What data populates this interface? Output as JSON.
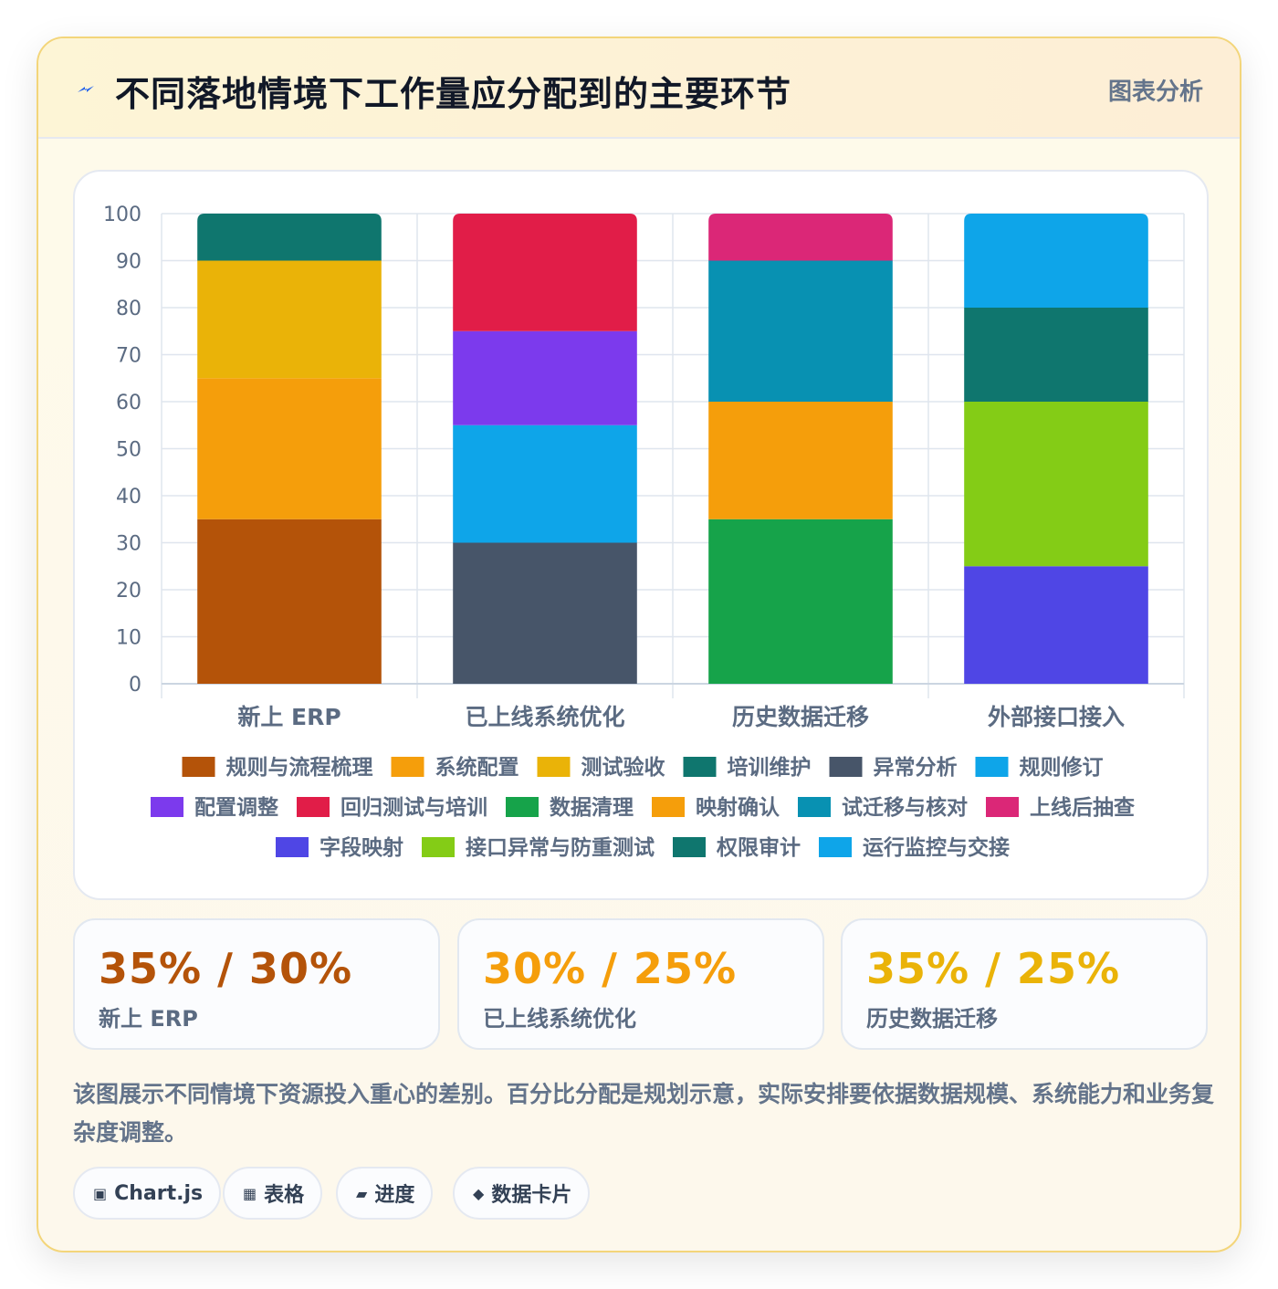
{
  "header": {
    "icon": "lightning-icon",
    "title": "不同落地情境下工作量应分配到的主要环节",
    "tag": "图表分析"
  },
  "chart_data": {
    "type": "bar",
    "stacked": true,
    "categories": [
      "新上 ERP",
      "已上线系统优化",
      "历史数据迁移",
      "外部接口接入"
    ],
    "ylim": [
      0,
      100
    ],
    "yticks": [
      0,
      10,
      20,
      30,
      40,
      50,
      60,
      70,
      80,
      90,
      100
    ],
    "grid": true,
    "legend_position": "bottom",
    "series": [
      {
        "name": "规则与流程梳理",
        "color": "#b45309",
        "values": [
          35,
          0,
          0,
          0
        ]
      },
      {
        "name": "系统配置",
        "color": "#f59e0b",
        "values": [
          30,
          0,
          0,
          0
        ]
      },
      {
        "name": "测试验收",
        "color": "#eab308",
        "values": [
          25,
          0,
          0,
          0
        ]
      },
      {
        "name": "培训维护",
        "color": "#0f766e",
        "values": [
          10,
          0,
          0,
          0
        ]
      },
      {
        "name": "异常分析",
        "color": "#475569",
        "values": [
          0,
          30,
          0,
          0
        ]
      },
      {
        "name": "规则修订",
        "color": "#0ea5e9",
        "values": [
          0,
          25,
          0,
          0
        ]
      },
      {
        "name": "配置调整",
        "color": "#7c3aed",
        "values": [
          0,
          20,
          0,
          0
        ]
      },
      {
        "name": "回归测试与培训",
        "color": "#e11d48",
        "values": [
          0,
          25,
          0,
          0
        ]
      },
      {
        "name": "数据清理",
        "color": "#16a34a",
        "values": [
          0,
          0,
          35,
          0
        ]
      },
      {
        "name": "映射确认",
        "color": "#f59e0b",
        "values": [
          0,
          0,
          25,
          0
        ]
      },
      {
        "name": "试迁移与核对",
        "color": "#0891b2",
        "values": [
          0,
          0,
          30,
          0
        ]
      },
      {
        "name": "上线后抽查",
        "color": "#db2777",
        "values": [
          0,
          0,
          10,
          0
        ]
      },
      {
        "name": "字段映射",
        "color": "#4f46e5",
        "values": [
          0,
          0,
          0,
          25
        ]
      },
      {
        "name": "接口异常与防重测试",
        "color": "#84cc16",
        "values": [
          0,
          0,
          0,
          35
        ]
      },
      {
        "name": "权限审计",
        "color": "#0f766e",
        "values": [
          0,
          0,
          0,
          20
        ]
      },
      {
        "name": "运行监控与交接",
        "color": "#0ea5e9",
        "values": [
          0,
          0,
          0,
          20
        ]
      }
    ]
  },
  "stats": [
    {
      "value": "35% / 30%",
      "label": "新上 ERP",
      "color": "#b45309"
    },
    {
      "value": "30% / 25%",
      "label": "已上线系统优化",
      "color": "#f59e0b"
    },
    {
      "value": "35% / 25%",
      "label": "历史数据迁移",
      "color": "#eab308"
    }
  ],
  "description": "该图展示不同情境下资源投入重心的差别。百分比分配是规划示意，实际安排要依据数据规模、系统能力和业务复杂度调整。",
  "chips": [
    {
      "icon": "chip-square-icon",
      "glyph": "▣",
      "label": "Chart.js"
    },
    {
      "icon": "table-icon",
      "glyph": "▦",
      "label": "表格"
    },
    {
      "icon": "progress-icon",
      "glyph": "▰",
      "label": "进度"
    },
    {
      "icon": "diamond-icon",
      "glyph": "◆",
      "label": "数据卡片"
    }
  ]
}
